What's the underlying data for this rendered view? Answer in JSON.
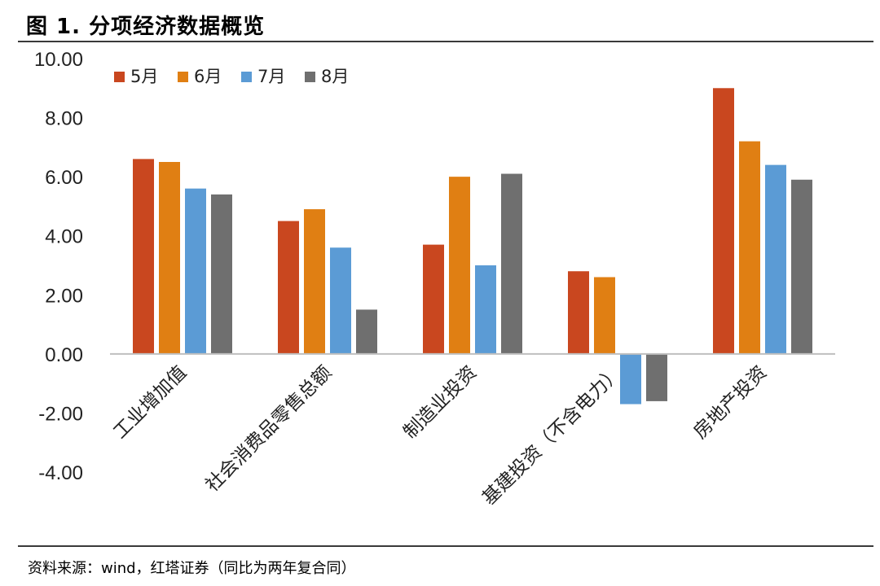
{
  "title": "图 1. 分项经济数据概览",
  "source": "资料来源：wind，红塔证券（同比为两年复合同）",
  "colors": {
    "axis": "#bfbfbf",
    "text": "#222222"
  },
  "chart_data": {
    "type": "bar",
    "title": "图 1. 分项经济数据概览",
    "xlabel": "",
    "ylabel": "",
    "ylim": [
      -4,
      10
    ],
    "ytick_step": 2,
    "ytick_labels": [
      "-4.00",
      "-2.00",
      "0.00",
      "2.00",
      "4.00",
      "6.00",
      "8.00",
      "10.00"
    ],
    "legend_position": "top-left",
    "categories": [
      "工业增加值",
      "社会消费品零售总额",
      "制造业投资",
      "基建投资（不含电力）",
      "房地产投资"
    ],
    "series": [
      {
        "name": "5月",
        "color": "#c9471f",
        "values": [
          6.6,
          4.5,
          3.7,
          2.8,
          9.0
        ]
      },
      {
        "name": "6月",
        "color": "#e07f13",
        "values": [
          6.5,
          4.9,
          6.0,
          2.6,
          7.2
        ]
      },
      {
        "name": "7月",
        "color": "#5b9bd5",
        "values": [
          5.6,
          3.6,
          3.0,
          -1.7,
          6.4
        ]
      },
      {
        "name": "8月",
        "color": "#6f6f6f",
        "values": [
          5.4,
          1.5,
          6.1,
          -1.6,
          5.9
        ]
      }
    ]
  }
}
